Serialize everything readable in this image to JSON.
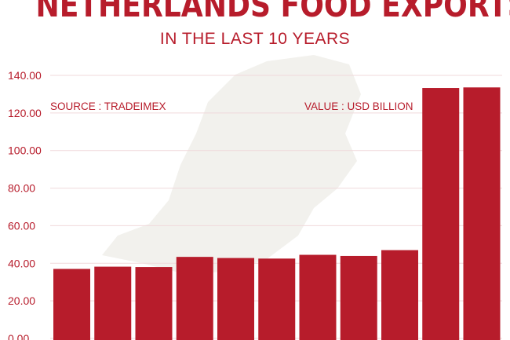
{
  "header": {
    "title": "NETHERLANDS FOOD EXPORTS",
    "subtitle": "IN THE LAST 10 YEARS"
  },
  "colors": {
    "accent": "#b71c2b",
    "grid": "#f0d9db",
    "map_shape": "#ecebe6"
  },
  "chart_data": {
    "type": "bar",
    "title": "NETHERLANDS FOOD EXPORTS",
    "subtitle": "IN THE LAST 10 YEARS",
    "xlabel": "",
    "ylabel": "",
    "categories": [
      "",
      "",
      "",
      "",
      "",
      "",
      "",
      "",
      "",
      "",
      ""
    ],
    "values": [
      37.0,
      38.2,
      38.0,
      43.4,
      42.8,
      42.5,
      44.5,
      43.9,
      47.0,
      133.3,
      133.6
    ],
    "ylim": [
      0,
      140
    ],
    "yticks": [
      "0.00",
      "20.00",
      "40.00",
      "60.00",
      "80.00",
      "100.00",
      "120.00",
      "140.00"
    ],
    "grid": true,
    "annotations": {
      "source": "SOURCE : TRADEIMEX",
      "unit": "VALUE : USD BILLION"
    }
  }
}
